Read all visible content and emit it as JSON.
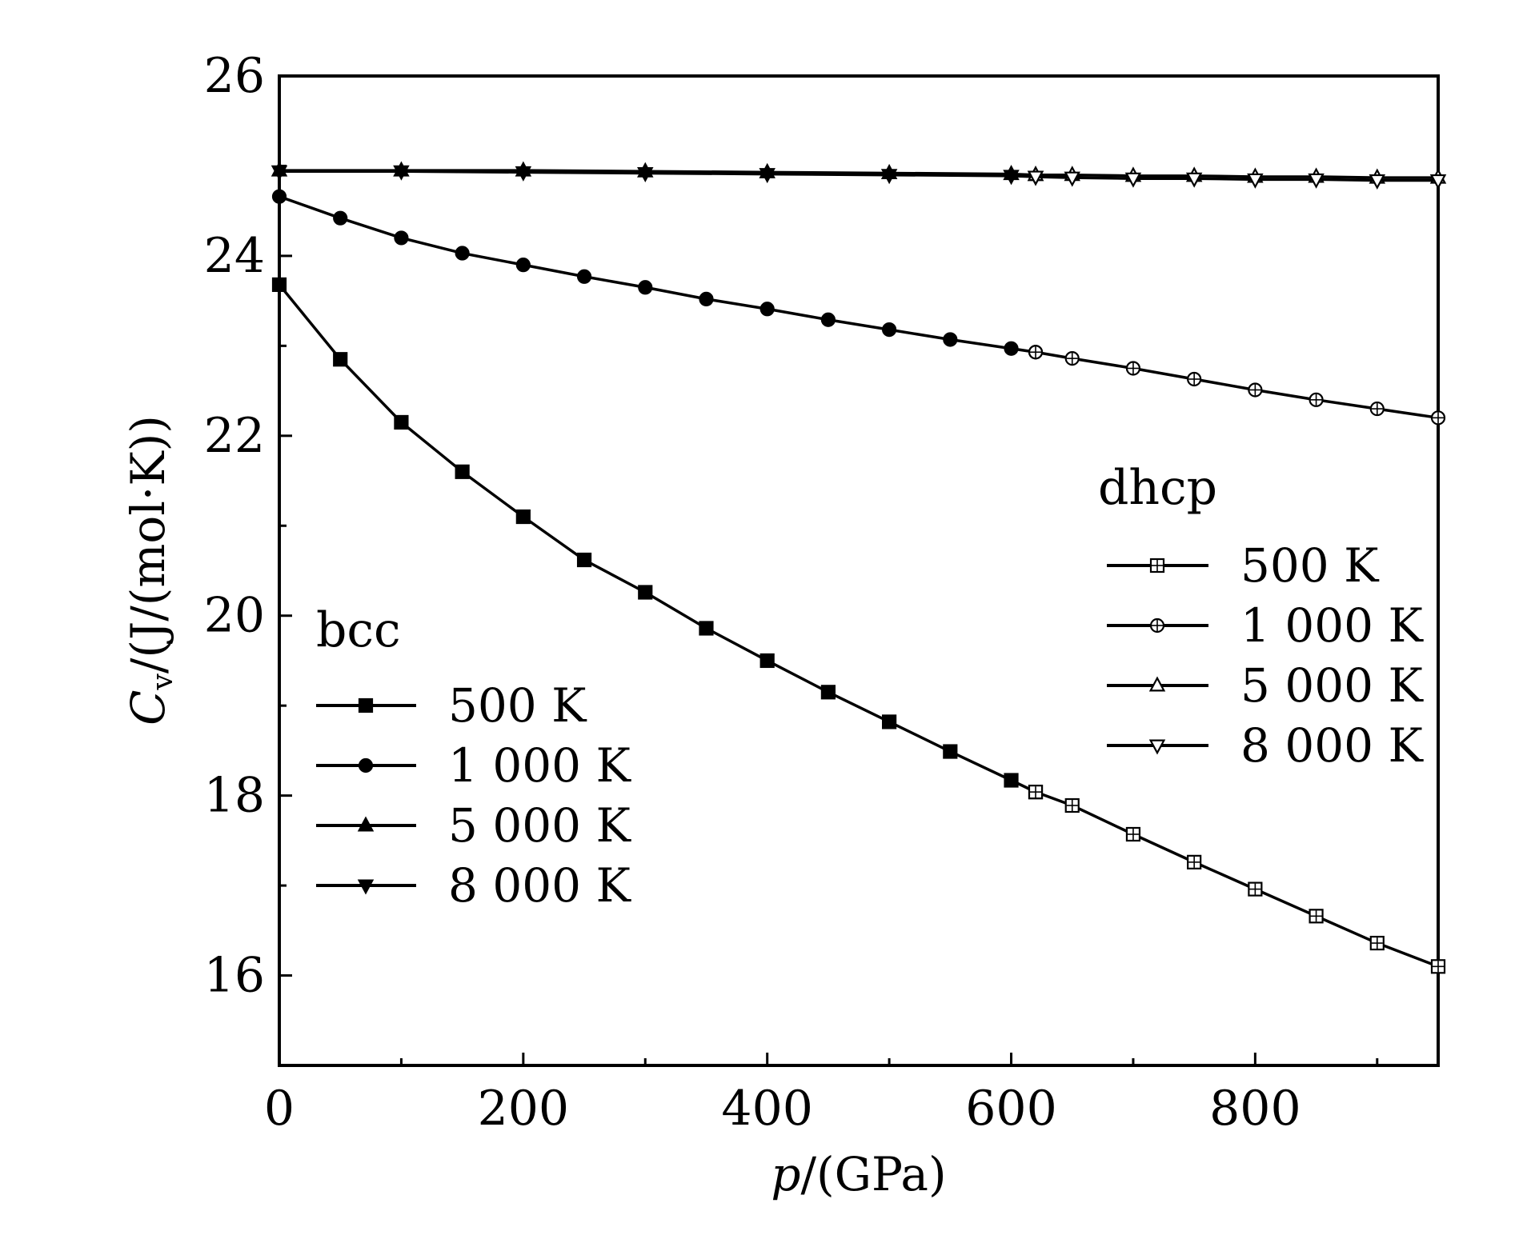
{
  "chart_data": {
    "type": "line",
    "title": "",
    "xlabel": {
      "italic": "p",
      "rest": "/(GPa)"
    },
    "ylabel": {
      "italic": "C",
      "sub": "v",
      "rest": "/(J/(mol·K))"
    },
    "xlim": [
      0,
      950
    ],
    "ylim": [
      15,
      26
    ],
    "xticks": [
      0,
      200,
      400,
      600,
      800
    ],
    "xtick_labels": [
      "0",
      "200",
      "400",
      "600",
      "800"
    ],
    "yticks": [
      16,
      18,
      20,
      22,
      24,
      26
    ],
    "ytick_labels": [
      "16",
      "18",
      "20",
      "22",
      "24",
      "26"
    ],
    "grid": false,
    "legends": [
      {
        "title": "bcc",
        "placement": "lower-left",
        "entries": [
          "500 K",
          "1 000 K",
          "5 000 K",
          "8 000 K"
        ]
      },
      {
        "title": "dhcp",
        "placement": "right",
        "entries": [
          "500 K",
          "1 000 K",
          "5 000 K",
          "8 000 K"
        ]
      }
    ],
    "series": [
      {
        "name": "bcc 500 K",
        "phase": "bcc",
        "marker": "square-filled",
        "x": [
          0,
          50,
          100,
          150,
          200,
          250,
          300,
          350,
          400,
          450,
          500,
          550,
          600,
          620
        ],
        "y": [
          23.68,
          22.85,
          22.15,
          21.6,
          21.1,
          20.62,
          20.26,
          19.86,
          19.5,
          19.15,
          18.82,
          18.49,
          18.17,
          18.04
        ]
      },
      {
        "name": "bcc 1 000 K",
        "phase": "bcc",
        "marker": "circle-filled",
        "x": [
          0,
          50,
          100,
          150,
          200,
          250,
          300,
          350,
          400,
          450,
          500,
          550,
          600,
          620
        ],
        "y": [
          24.66,
          24.42,
          24.2,
          24.03,
          23.9,
          23.77,
          23.65,
          23.52,
          23.41,
          23.29,
          23.18,
          23.07,
          22.97,
          22.93
        ]
      },
      {
        "name": "bcc 5 000 K",
        "phase": "bcc",
        "marker": "triangle-up-filled",
        "x": [
          0,
          100,
          200,
          300,
          400,
          500,
          600,
          620
        ],
        "y": [
          24.95,
          24.95,
          24.95,
          24.94,
          24.93,
          24.92,
          24.91,
          24.9
        ]
      },
      {
        "name": "bcc 8 000 K",
        "phase": "bcc",
        "marker": "triangle-down-filled",
        "x": [
          0,
          100,
          200,
          300,
          400,
          500,
          600,
          620
        ],
        "y": [
          24.94,
          24.94,
          24.93,
          24.92,
          24.91,
          24.9,
          24.89,
          24.88
        ]
      },
      {
        "name": "dhcp 500 K",
        "phase": "dhcp",
        "marker": "square-open-plus",
        "x": [
          620,
          650,
          700,
          750,
          800,
          850,
          900,
          950
        ],
        "y": [
          18.04,
          17.89,
          17.57,
          17.26,
          16.96,
          16.66,
          16.36,
          16.1
        ]
      },
      {
        "name": "dhcp 1 000 K",
        "phase": "dhcp",
        "marker": "circle-open-plus",
        "x": [
          620,
          650,
          700,
          750,
          800,
          850,
          900,
          950
        ],
        "y": [
          22.93,
          22.86,
          22.75,
          22.63,
          22.51,
          22.4,
          22.3,
          22.2
        ]
      },
      {
        "name": "dhcp 5 000 K",
        "phase": "dhcp",
        "marker": "triangle-up-open",
        "x": [
          620,
          650,
          700,
          750,
          800,
          850,
          900,
          950
        ],
        "y": [
          24.9,
          24.9,
          24.89,
          24.89,
          24.88,
          24.88,
          24.87,
          24.87
        ]
      },
      {
        "name": "dhcp 8 000 K",
        "phase": "dhcp",
        "marker": "triangle-down-open",
        "x": [
          620,
          650,
          700,
          750,
          800,
          850,
          900,
          950
        ],
        "y": [
          24.88,
          24.87,
          24.86,
          24.86,
          24.85,
          24.85,
          24.84,
          24.84
        ]
      }
    ]
  }
}
